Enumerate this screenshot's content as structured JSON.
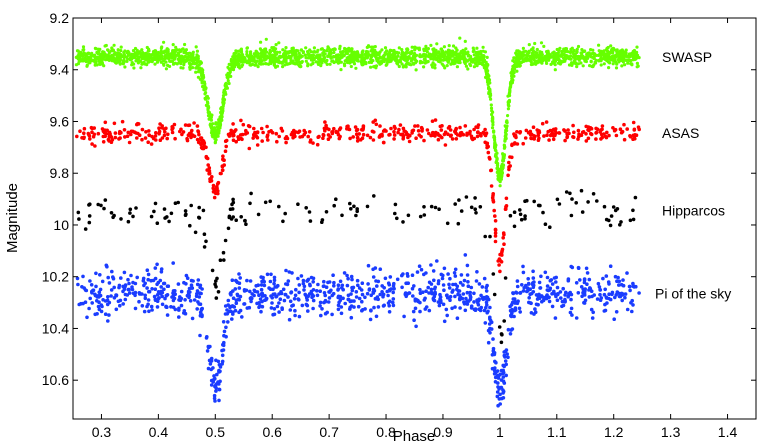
{
  "chart_data": {
    "type": "scatter",
    "xlabel": "Phase",
    "ylabel": "Magnitude",
    "xlim": [
      0.25,
      1.45
    ],
    "ylim": [
      9.2,
      10.75
    ],
    "y_inverted": true,
    "x_ticks": [
      "0.3",
      "0.4",
      "0.5",
      "0.6",
      "0.7",
      "0.8",
      "0.9",
      "1",
      "1.1",
      "1.2",
      "1.3",
      "1.4"
    ],
    "y_ticks": [
      "9.2",
      "9.4",
      "9.6",
      "9.8",
      "10",
      "10.2",
      "10.4",
      "10.6"
    ],
    "grid": false,
    "series": [
      {
        "name": "SWASP",
        "color": "#66ff00",
        "baseline": 9.35,
        "scatter": 0.018,
        "count": 2600,
        "eclipses": [
          {
            "phase": 0.5,
            "depth": 0.3,
            "width": 0.022
          },
          {
            "phase": 1.0,
            "depth": 0.46,
            "width": 0.018
          }
        ]
      },
      {
        "name": "ASAS",
        "color": "#ff0000",
        "baseline": 9.645,
        "scatter": 0.018,
        "count": 620,
        "eclipses": [
          {
            "phase": 0.5,
            "depth": 0.23,
            "width": 0.018
          },
          {
            "phase": 1.0,
            "depth": 0.5,
            "width": 0.016
          }
        ]
      },
      {
        "name": "Hipparcos",
        "color": "#000000",
        "baseline": 9.945,
        "scatter": 0.032,
        "count": 170,
        "eclipses": [
          {
            "phase": 0.5,
            "depth": 0.28,
            "width": 0.02
          },
          {
            "phase": 1.0,
            "depth": 0.5,
            "width": 0.016
          }
        ]
      },
      {
        "name": "Pi of the sky",
        "color": "#1a3cff",
        "baseline": 10.265,
        "scatter": 0.045,
        "count": 1100,
        "eclipses": [
          {
            "phase": 0.5,
            "depth": 0.37,
            "width": 0.02
          },
          {
            "phase": 1.0,
            "depth": 0.37,
            "width": 0.018
          }
        ]
      }
    ]
  }
}
